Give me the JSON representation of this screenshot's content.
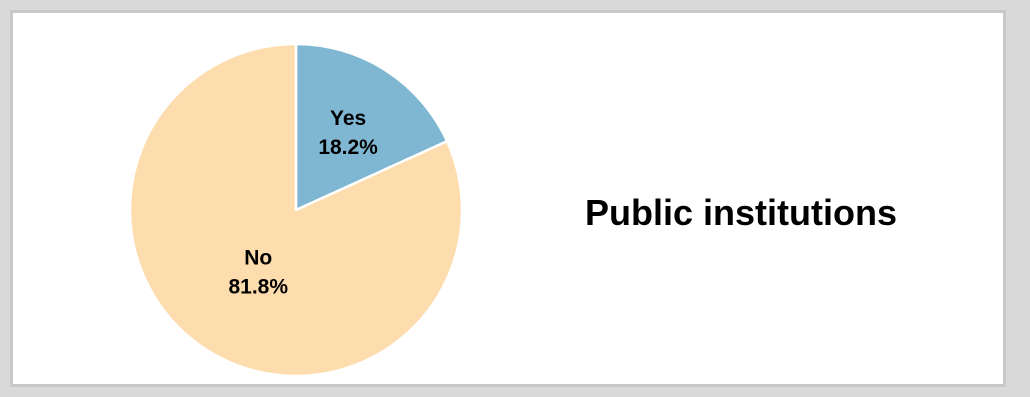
{
  "chart_data": {
    "type": "pie",
    "title": "Public institutions",
    "slices": [
      {
        "label": "Yes",
        "percent_label": "18.2%",
        "value": 18.2,
        "color": "#7fb7d3"
      },
      {
        "label": "No",
        "percent_label": "81.8%",
        "value": 81.8,
        "color": "#fddcad"
      }
    ],
    "start_angle_deg": 0,
    "direction": "clockwise",
    "slice_border_color": "#ffffff"
  }
}
